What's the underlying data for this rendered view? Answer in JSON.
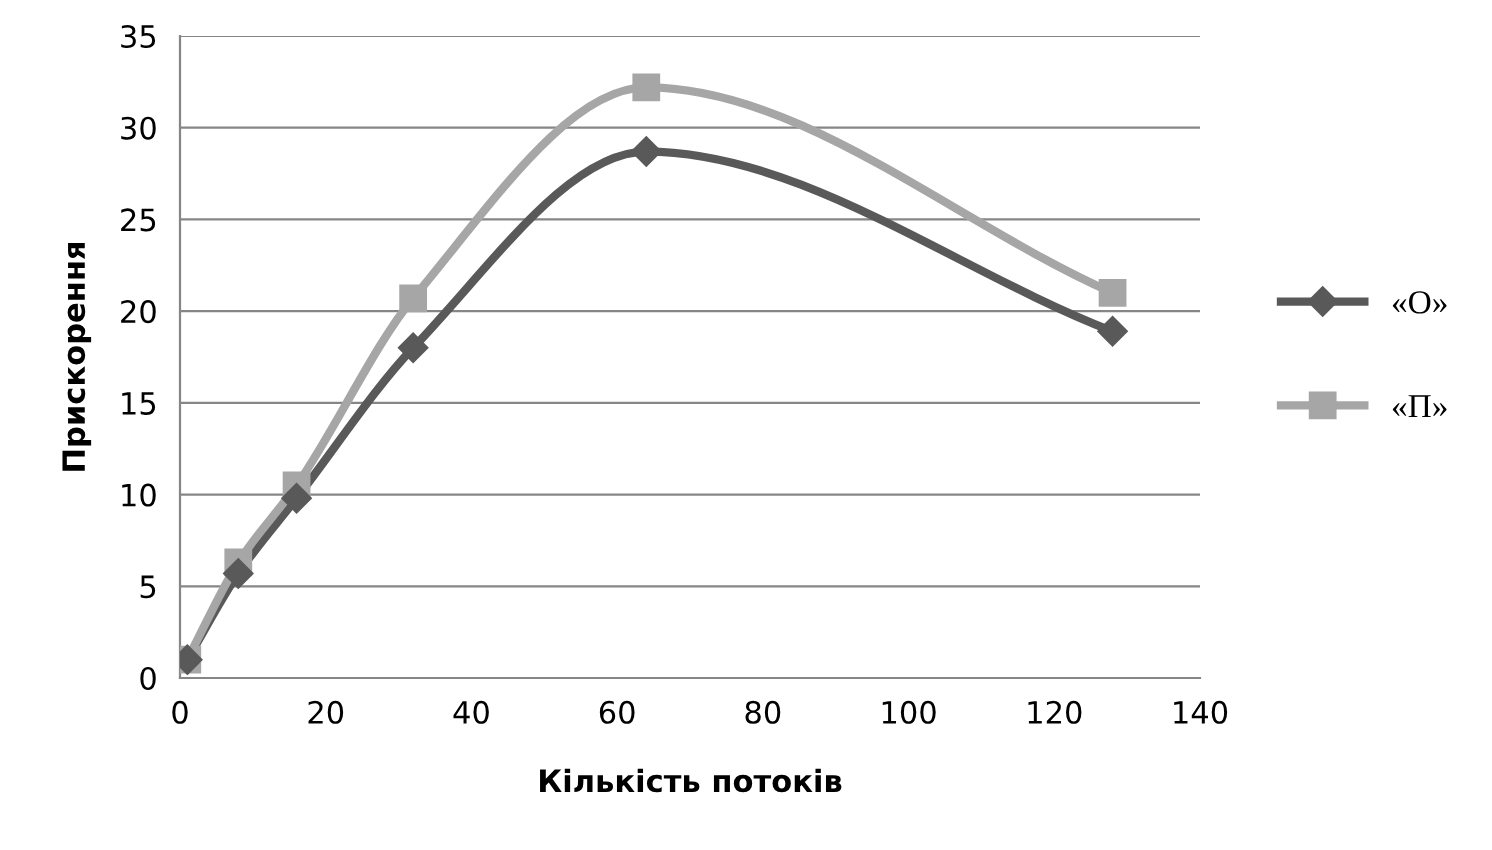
{
  "chart_data": {
    "type": "line",
    "xlabel": "Кількість потоків",
    "ylabel": "Прискорення",
    "x": [
      1,
      8,
      16,
      32,
      64,
      128
    ],
    "series": [
      {
        "name": "«О»",
        "color": "#595959",
        "marker": "diamond",
        "values": [
          1,
          5.7,
          9.8,
          18,
          28.7,
          18.9
        ]
      },
      {
        "name": "«П»",
        "color": "#a6a6a6",
        "marker": "square",
        "values": [
          1,
          6.3,
          10.5,
          20.7,
          32.2,
          21
        ]
      }
    ],
    "xlim": [
      0,
      140
    ],
    "xticks": [
      0,
      20,
      40,
      60,
      80,
      100,
      120,
      140
    ],
    "ylim": [
      0,
      35
    ],
    "yticks": [
      0,
      5,
      10,
      15,
      20,
      25,
      30,
      35
    ],
    "grid": "y",
    "legend": "right",
    "line_style": "solid"
  }
}
